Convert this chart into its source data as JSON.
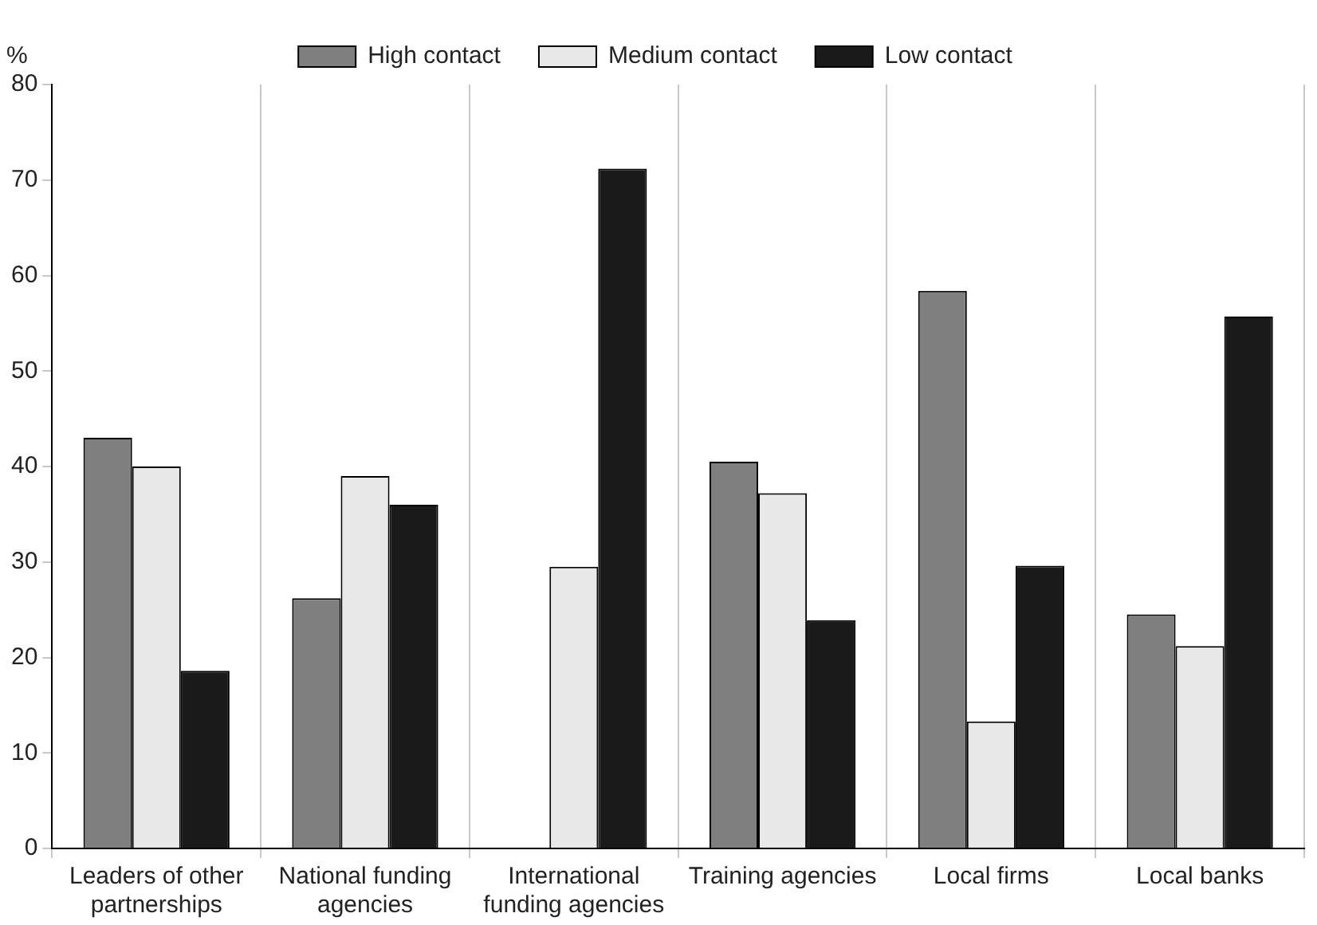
{
  "chart_data": {
    "type": "bar",
    "ylabel": "%",
    "categories": [
      "Leaders of other partnerships",
      "National funding agencies",
      "International funding agencies",
      "Training agencies",
      "Local firms",
      "Local banks"
    ],
    "series": [
      {
        "name": "High contact",
        "color": "#7f7f7f",
        "values": [
          43,
          26.2,
          0,
          40.5,
          58.4,
          24.5
        ]
      },
      {
        "name": "Medium contact",
        "color": "#e8e8e8",
        "values": [
          40,
          39,
          29.5,
          37.2,
          13.3,
          21.2
        ]
      },
      {
        "name": "Low contact",
        "color": "#1a1a1a",
        "values": [
          18.6,
          36,
          71.2,
          23.9,
          29.6,
          55.7
        ]
      }
    ],
    "ylim": [
      0,
      80
    ],
    "yticks": [
      0,
      10,
      20,
      30,
      40,
      50,
      60,
      70,
      80
    ],
    "grid": "x",
    "legend": "top"
  }
}
